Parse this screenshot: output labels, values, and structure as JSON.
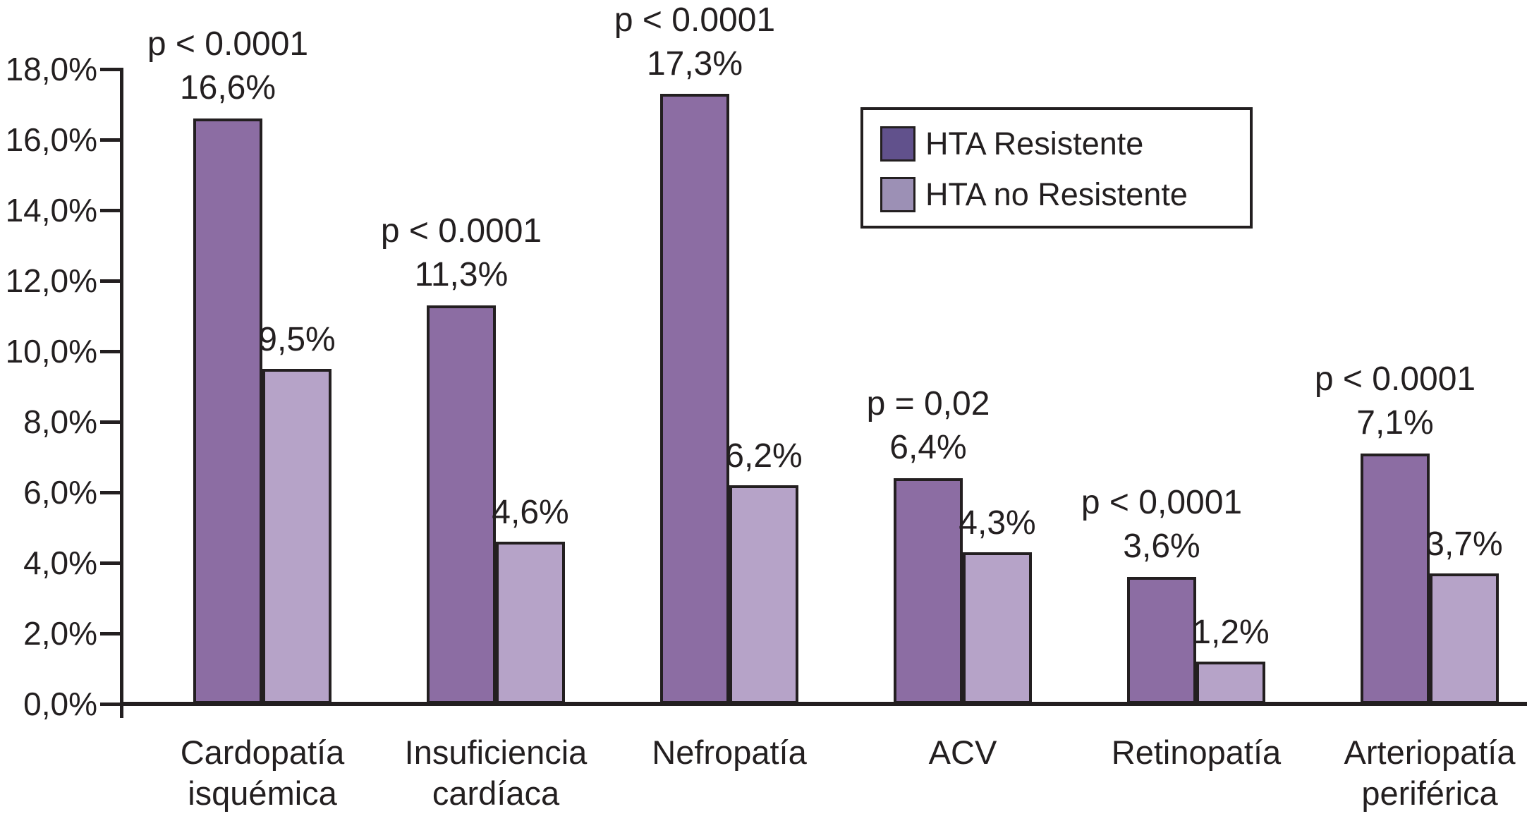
{
  "chart_data": {
    "type": "bar",
    "title": "",
    "xlabel": "",
    "ylabel": "",
    "grid": false,
    "axis_color": "#231f20",
    "text_color": "#231f20",
    "categories": [
      [
        "Cardopatía",
        "isquémica"
      ],
      [
        "Insuficiencia",
        "cardíaca"
      ],
      [
        "Nefropatía"
      ],
      [
        "ACV"
      ],
      [
        "Retinopatía"
      ],
      [
        "Arteriopatía",
        "periférica"
      ]
    ],
    "series": [
      {
        "name": "HTA Resistente",
        "bar_color": "#8c6da3",
        "legend_color": "#61518c",
        "values": [
          16.6,
          11.3,
          17.3,
          6.4,
          3.6,
          7.1
        ],
        "value_labels": [
          "16,6%",
          "11,3%",
          "17,3%",
          "6,4%",
          "3,6%",
          "7,1%"
        ]
      },
      {
        "name": "HTA no Resistente",
        "bar_color": "#b6a3c8",
        "legend_color": "#9c90b5",
        "values": [
          9.5,
          4.6,
          6.2,
          4.3,
          1.2,
          3.7
        ],
        "value_labels": [
          "9,5%",
          "4,6%",
          "6,2%",
          "4,3%",
          "1,2%",
          "3,7%"
        ]
      }
    ],
    "p_value_labels": [
      "p < 0.0001",
      "p < 0.0001",
      "p < 0.0001",
      "p = 0,02",
      "p < 0,0001",
      "p < 0.0001"
    ],
    "y_axis": {
      "min": 0,
      "max": 18,
      "step": 2,
      "tick_labels": [
        "0,0%",
        "2,0%",
        "4,0%",
        "6,0%",
        "8,0%",
        "10,0%",
        "12,0%",
        "14,0%",
        "16,0%",
        "18,0%"
      ]
    },
    "legend": {
      "position": "top-right",
      "entries": [
        "HTA Resistente",
        "HTA no Resistente"
      ]
    }
  }
}
